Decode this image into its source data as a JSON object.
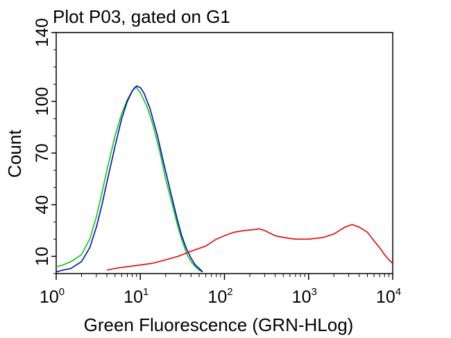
{
  "chart_data": {
    "type": "line",
    "title": "Plot P03, gated on G1",
    "xlabel": "Green Fluorescence (GRN-HLog)",
    "ylabel": "Count",
    "x_scale": "log",
    "xlim": [
      1,
      10000
    ],
    "ylim": [
      0,
      140
    ],
    "x_ticks": [
      {
        "base": "10",
        "exp": "0",
        "value": 1
      },
      {
        "base": "10",
        "exp": "1",
        "value": 10
      },
      {
        "base": "10",
        "exp": "2",
        "value": 100
      },
      {
        "base": "10",
        "exp": "3",
        "value": 1000
      },
      {
        "base": "10",
        "exp": "4",
        "value": 10000
      }
    ],
    "y_ticks": [
      {
        "label": "10",
        "value": 10
      },
      {
        "label": "40",
        "value": 40
      },
      {
        "label": "70",
        "value": 70
      },
      {
        "label": "100",
        "value": 100
      },
      {
        "label": "140",
        "value": 140
      }
    ],
    "grid": false,
    "series": [
      {
        "color": "#00cc00",
        "points": [
          [
            1,
            4
          ],
          [
            1.2,
            5
          ],
          [
            1.5,
            7
          ],
          [
            2,
            11
          ],
          [
            2.5,
            20
          ],
          [
            3,
            33
          ],
          [
            3.5,
            47
          ],
          [
            4,
            60
          ],
          [
            5,
            80
          ],
          [
            6,
            93
          ],
          [
            7,
            101
          ],
          [
            8,
            106
          ],
          [
            8.5,
            108
          ],
          [
            9,
            108
          ],
          [
            10,
            105
          ],
          [
            12,
            97
          ],
          [
            14,
            87
          ],
          [
            17,
            71
          ],
          [
            20,
            55
          ],
          [
            24,
            40
          ],
          [
            28,
            27
          ],
          [
            32,
            18
          ],
          [
            36,
            11
          ],
          [
            40,
            7
          ],
          [
            45,
            4
          ],
          [
            50,
            2
          ],
          [
            55,
            1
          ]
        ]
      },
      {
        "color": "#0000cc",
        "points": [
          [
            1,
            1
          ],
          [
            1.2,
            2
          ],
          [
            1.5,
            3
          ],
          [
            2,
            7
          ],
          [
            2.5,
            15
          ],
          [
            3,
            27
          ],
          [
            3.5,
            40
          ],
          [
            4,
            53
          ],
          [
            5,
            74
          ],
          [
            6,
            90
          ],
          [
            7,
            100
          ],
          [
            8,
            106
          ],
          [
            9,
            109
          ],
          [
            10,
            108
          ],
          [
            11,
            105
          ],
          [
            13,
            96
          ],
          [
            16,
            80
          ],
          [
            19,
            64
          ],
          [
            23,
            47
          ],
          [
            27,
            33
          ],
          [
            31,
            22
          ],
          [
            35,
            15
          ],
          [
            40,
            9
          ],
          [
            45,
            5
          ],
          [
            50,
            3
          ],
          [
            55,
            1
          ]
        ]
      },
      {
        "color": "#e60000",
        "points": [
          [
            4,
            2
          ],
          [
            5,
            3
          ],
          [
            7,
            4
          ],
          [
            10,
            5
          ],
          [
            14,
            6
          ],
          [
            20,
            8
          ],
          [
            28,
            10
          ],
          [
            40,
            13
          ],
          [
            60,
            16
          ],
          [
            80,
            20
          ],
          [
            100,
            22
          ],
          [
            130,
            24
          ],
          [
            170,
            25
          ],
          [
            220,
            25.5
          ],
          [
            260,
            26
          ],
          [
            300,
            25
          ],
          [
            400,
            22
          ],
          [
            500,
            21
          ],
          [
            700,
            20
          ],
          [
            1000,
            20
          ],
          [
            1500,
            21
          ],
          [
            2000,
            23
          ],
          [
            2700,
            27
          ],
          [
            3300,
            28.5
          ],
          [
            4000,
            27
          ],
          [
            5000,
            24
          ],
          [
            6000,
            19
          ],
          [
            7000,
            15
          ],
          [
            8000,
            11
          ],
          [
            9000,
            8
          ],
          [
            10000,
            6
          ]
        ]
      }
    ]
  }
}
